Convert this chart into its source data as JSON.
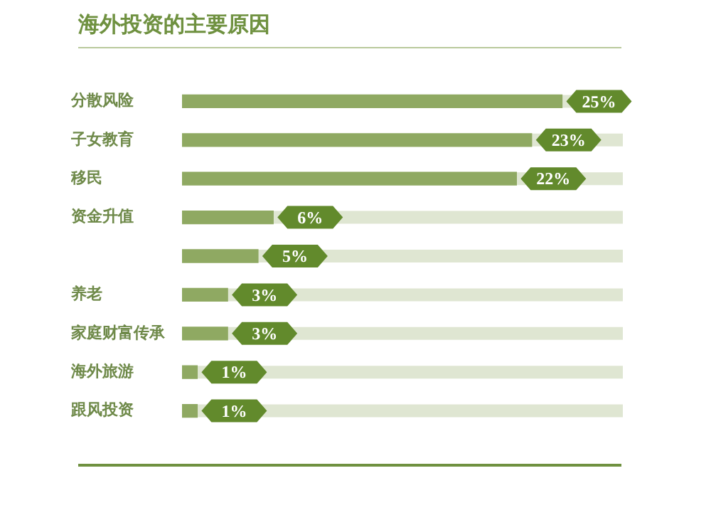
{
  "chart_data": {
    "type": "bar",
    "orientation": "horizontal",
    "title": "海外投资的主要原因",
    "categories": [
      "分散风险",
      "子女教育",
      "移民",
      "资金升值",
      null,
      "养老",
      "家庭财富传承",
      "海外旅游",
      "跟风投资"
    ],
    "values": [
      25,
      23,
      22,
      6,
      5,
      3,
      3,
      1,
      1
    ],
    "value_labels": [
      "25%",
      "23%",
      "22%",
      "6%",
      "5%",
      "3%",
      "3%",
      "1%",
      "1%"
    ],
    "color": "#8fa962",
    "xlim": [
      0,
      29
    ],
    "tick_labels": "y",
    "grid": false,
    "legend": false
  }
}
